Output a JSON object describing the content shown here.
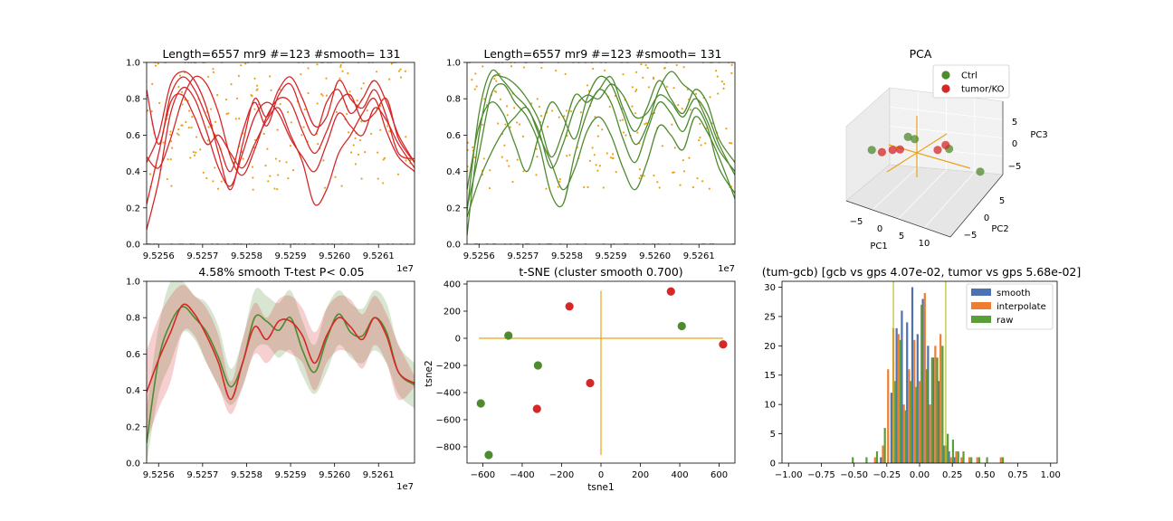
{
  "figure": {
    "panels": {
      "p1": {
        "title": "Length=6557 mr9 #=123 #smooth= 131",
        "offset": "1e7"
      },
      "p2": {
        "title": "Length=6557 mr9 #=123 #smooth= 131",
        "offset": "1e7"
      },
      "p3": {
        "title": "PCA",
        "xlabel": "PC1",
        "ylabel": "PC2",
        "zlabel": "PC3"
      },
      "p4": {
        "title": "4.58% smooth T-test P< 0.05",
        "offset": "1e7"
      },
      "p5": {
        "title": "t-SNE (cluster smooth 0.700)",
        "xlabel": "tsne1",
        "ylabel": "tsne2"
      },
      "p6": {
        "title": "(tum-gcb) [gcb vs gps 4.07e-02, tumor vs gps 5.68e-02]"
      }
    },
    "colors": {
      "red": "#d62728",
      "green": "#4e8a2e",
      "orange": "#e8a317",
      "blue": "#4c72b0",
      "hist_orange": "#ed7d31",
      "hist_green": "#5a9e3a"
    }
  },
  "chart_data": [
    {
      "type": "line",
      "panel": "p1",
      "title": "Length=6557 mr9 #=123 #smooth= 131",
      "xticks": [
        "9.5256",
        "9.5257",
        "9.5258",
        "9.5259",
        "9.5260",
        "9.5261"
      ],
      "xlim": [
        9.52552,
        9.52619
      ],
      "ylim": [
        0,
        1
      ],
      "yticks": [
        "0.0",
        "0.2",
        "0.4",
        "0.6",
        "0.8",
        "1.0"
      ],
      "x": [
        9.52552,
        9.52555,
        9.52558,
        9.52561,
        9.52564,
        9.52567,
        9.5257,
        9.52573,
        9.52576,
        9.52579,
        9.52582,
        9.52585,
        9.52588,
        9.52591,
        9.52594,
        9.52597,
        9.526,
        9.52603,
        9.52606,
        9.52609,
        9.52612,
        9.52615,
        9.52619
      ],
      "series": [
        {
          "color": "#d62728",
          "values": [
            0.85,
            0.55,
            0.82,
            0.92,
            0.85,
            0.7,
            0.55,
            0.4,
            0.62,
            0.78,
            0.65,
            0.82,
            0.88,
            0.72,
            0.6,
            0.78,
            0.85,
            0.72,
            0.8,
            0.9,
            0.78,
            0.6,
            0.45
          ]
        },
        {
          "color": "#d62728",
          "values": [
            0.45,
            0.6,
            0.88,
            0.95,
            0.9,
            0.75,
            0.5,
            0.3,
            0.55,
            0.8,
            0.7,
            0.85,
            0.92,
            0.8,
            0.65,
            0.7,
            0.9,
            0.8,
            0.75,
            0.85,
            0.7,
            0.5,
            0.47
          ]
        },
        {
          "color": "#d62728",
          "values": [
            0.08,
            0.35,
            0.72,
            0.86,
            0.8,
            0.62,
            0.42,
            0.32,
            0.5,
            0.7,
            0.78,
            0.72,
            0.58,
            0.48,
            0.4,
            0.55,
            0.72,
            0.65,
            0.6,
            0.75,
            0.68,
            0.55,
            0.42
          ]
        },
        {
          "color": "#d62728",
          "values": [
            0.22,
            0.5,
            0.78,
            0.82,
            0.7,
            0.55,
            0.6,
            0.5,
            0.42,
            0.55,
            0.68,
            0.75,
            0.6,
            0.45,
            0.22,
            0.3,
            0.5,
            0.6,
            0.72,
            0.8,
            0.62,
            0.48,
            0.4
          ]
        },
        {
          "color": "#d62728",
          "values": [
            0.48,
            0.42,
            0.58,
            0.8,
            0.92,
            0.88,
            0.72,
            0.48,
            0.38,
            0.52,
            0.7,
            0.8,
            0.78,
            0.62,
            0.5,
            0.62,
            0.78,
            0.82,
            0.68,
            0.72,
            0.8,
            0.58,
            0.45
          ]
        }
      ]
    },
    {
      "type": "line",
      "panel": "p2",
      "title": "Length=6557 mr9 #=123 #smooth= 131",
      "xticks": [
        "9.5256",
        "9.5257",
        "9.5258",
        "9.5259",
        "9.5260",
        "9.5261"
      ],
      "xlim": [
        9.52552,
        9.52619
      ],
      "ylim": [
        0,
        1
      ],
      "yticks": [
        "0.0",
        "0.2",
        "0.4",
        "0.6",
        "0.8",
        "1.0"
      ],
      "x": [
        9.52552,
        9.52555,
        9.52558,
        9.52561,
        9.52564,
        9.52567,
        9.5257,
        9.52573,
        9.52576,
        9.52579,
        9.52582,
        9.52585,
        9.52588,
        9.52591,
        9.52594,
        9.52597,
        9.526,
        9.52603,
        9.52606,
        9.52609,
        9.52612,
        9.52615,
        9.52619
      ],
      "series": [
        {
          "color": "#4e8a2e",
          "values": [
            0.05,
            0.6,
            0.9,
            0.92,
            0.88,
            0.8,
            0.68,
            0.48,
            0.62,
            0.82,
            0.78,
            0.85,
            0.92,
            0.75,
            0.62,
            0.75,
            0.9,
            0.8,
            0.72,
            0.85,
            0.78,
            0.58,
            0.45
          ]
        },
        {
          "color": "#4e8a2e",
          "values": [
            0.18,
            0.72,
            0.95,
            0.9,
            0.82,
            0.75,
            0.62,
            0.42,
            0.55,
            0.75,
            0.82,
            0.8,
            0.88,
            0.82,
            0.7,
            0.72,
            0.82,
            0.78,
            0.7,
            0.8,
            0.72,
            0.55,
            0.38
          ]
        },
        {
          "color": "#4e8a2e",
          "values": [
            0.2,
            0.5,
            0.82,
            0.88,
            0.78,
            0.7,
            0.55,
            0.28,
            0.22,
            0.5,
            0.72,
            0.85,
            0.78,
            0.58,
            0.45,
            0.62,
            0.78,
            0.72,
            0.62,
            0.75,
            0.65,
            0.42,
            0.28
          ]
        },
        {
          "color": "#4e8a2e",
          "values": [
            0.15,
            0.35,
            0.5,
            0.62,
            0.7,
            0.75,
            0.6,
            0.45,
            0.3,
            0.42,
            0.62,
            0.7,
            0.6,
            0.42,
            0.3,
            0.45,
            0.65,
            0.6,
            0.52,
            0.7,
            0.62,
            0.48,
            0.25
          ]
        },
        {
          "color": "#4e8a2e",
          "values": [
            0.3,
            0.65,
            0.78,
            0.72,
            0.55,
            0.4,
            0.6,
            0.78,
            0.7,
            0.58,
            0.8,
            0.92,
            0.88,
            0.72,
            0.55,
            0.65,
            0.85,
            0.95,
            0.88,
            0.82,
            0.68,
            0.52,
            0.4
          ]
        }
      ]
    },
    {
      "type": "scatter",
      "panel": "p3",
      "title": "PCA",
      "legend": [
        {
          "label": "Ctrl",
          "color": "#4e8a2e"
        },
        {
          "label": "tumor/KO",
          "color": "#d62728"
        }
      ],
      "xlabel": "PC1",
      "ylabel": "PC2",
      "zlabel": "PC3",
      "xticks": [
        "−5",
        "0",
        "5",
        "10"
      ],
      "yticks": [
        "−5",
        "0",
        "5"
      ],
      "zticks": [
        "−5",
        "0",
        "5"
      ],
      "points": [
        {
          "group": "Ctrl",
          "x": 3,
          "y": 6,
          "z": 6
        },
        {
          "group": "Ctrl",
          "x": 1,
          "y": 5,
          "z": 6
        },
        {
          "group": "Ctrl",
          "x": 8,
          "y": 2,
          "z": 3
        },
        {
          "group": "Ctrl",
          "x": -9,
          "y": 1,
          "z": 0
        },
        {
          "group": "Ctrl",
          "x": 10,
          "y": -6,
          "z": -5
        },
        {
          "group": "tumor/KO",
          "x": -4,
          "y": 2,
          "z": 1
        },
        {
          "group": "tumor/KO",
          "x": -3,
          "y": 1,
          "z": 1
        },
        {
          "group": "tumor/KO",
          "x": 5,
          "y": 1,
          "z": 2
        },
        {
          "group": "tumor/KO",
          "x": -8,
          "y": -1,
          "z": -1
        },
        {
          "group": "tumor/KO",
          "x": 9,
          "y": 5,
          "z": 5
        }
      ]
    },
    {
      "type": "area",
      "panel": "p4",
      "title": "4.58% smooth T-test P< 0.05",
      "xticks": [
        "9.5256",
        "9.5257",
        "9.5258",
        "9.5259",
        "9.5260",
        "9.5261"
      ],
      "xlim": [
        9.52552,
        9.52619
      ],
      "ylim": [
        0,
        1
      ],
      "yticks": [
        "0.0",
        "0.2",
        "0.4",
        "0.6",
        "0.8",
        "1.0"
      ],
      "x": [
        9.52552,
        9.52555,
        9.52558,
        9.52561,
        9.52564,
        9.52567,
        9.5257,
        9.52573,
        9.52576,
        9.52579,
        9.52582,
        9.52585,
        9.52588,
        9.52591,
        9.52594,
        9.52597,
        9.526,
        9.52603,
        9.52606,
        9.52609,
        9.52612,
        9.52615,
        9.52619
      ],
      "series": [
        {
          "name": "Ctrl",
          "color": "#4e8a2e",
          "mean": [
            0.11,
            0.57,
            0.77,
            0.86,
            0.8,
            0.72,
            0.58,
            0.42,
            0.55,
            0.8,
            0.78,
            0.73,
            0.8,
            0.62,
            0.5,
            0.68,
            0.82,
            0.72,
            0.7,
            0.8,
            0.72,
            0.5,
            0.43
          ],
          "lower": [
            0.0,
            0.38,
            0.55,
            0.72,
            0.68,
            0.55,
            0.42,
            0.32,
            0.42,
            0.62,
            0.65,
            0.58,
            0.62,
            0.48,
            0.38,
            0.5,
            0.65,
            0.58,
            0.55,
            0.62,
            0.55,
            0.38,
            0.3
          ],
          "upper": [
            0.3,
            0.75,
            1.0,
            1.0,
            0.92,
            0.88,
            0.75,
            0.52,
            0.68,
            0.95,
            0.92,
            0.88,
            0.95,
            0.78,
            0.65,
            0.85,
            0.95,
            0.88,
            0.85,
            0.95,
            0.88,
            0.65,
            0.55
          ]
        },
        {
          "name": "tumor/KO",
          "color": "#d62728",
          "mean": [
            0.39,
            0.57,
            0.72,
            0.87,
            0.82,
            0.7,
            0.55,
            0.35,
            0.55,
            0.75,
            0.68,
            0.78,
            0.78,
            0.7,
            0.55,
            0.7,
            0.8,
            0.75,
            0.68,
            0.8,
            0.7,
            0.5,
            0.44
          ],
          "lower": [
            0.12,
            0.3,
            0.45,
            0.72,
            0.7,
            0.55,
            0.42,
            0.27,
            0.42,
            0.6,
            0.55,
            0.62,
            0.6,
            0.55,
            0.4,
            0.55,
            0.62,
            0.6,
            0.52,
            0.65,
            0.55,
            0.35,
            0.42
          ],
          "upper": [
            0.62,
            0.8,
            0.92,
            0.98,
            0.92,
            0.85,
            0.7,
            0.45,
            0.68,
            0.88,
            0.8,
            0.9,
            0.92,
            0.85,
            0.72,
            0.85,
            0.92,
            0.9,
            0.82,
            0.92,
            0.82,
            0.65,
            0.48
          ]
        }
      ]
    },
    {
      "type": "scatter",
      "panel": "p5",
      "title": "t-SNE (cluster smooth 0.700)",
      "xlabel": "tsne1",
      "ylabel": "tsne2",
      "xlim": [
        -680,
        680
      ],
      "ylim": [
        -920,
        420
      ],
      "xticks": [
        -600,
        -400,
        -200,
        0,
        200,
        400,
        600
      ],
      "yticks": [
        400,
        200,
        0,
        -200,
        -400,
        -600,
        -800
      ],
      "points": [
        {
          "group": "Ctrl",
          "x": -470,
          "y": 20,
          "color": "#4e8a2e"
        },
        {
          "group": "Ctrl",
          "x": -320,
          "y": -200,
          "color": "#4e8a2e"
        },
        {
          "group": "Ctrl",
          "x": -610,
          "y": -480,
          "color": "#4e8a2e"
        },
        {
          "group": "Ctrl",
          "x": -570,
          "y": -860,
          "color": "#4e8a2e"
        },
        {
          "group": "Ctrl",
          "x": 410,
          "y": 90,
          "color": "#4e8a2e"
        },
        {
          "group": "tumor/KO",
          "x": -160,
          "y": 235,
          "color": "#d62728"
        },
        {
          "group": "tumor/KO",
          "x": -55,
          "y": -330,
          "color": "#d62728"
        },
        {
          "group": "tumor/KO",
          "x": -325,
          "y": -520,
          "color": "#d62728"
        },
        {
          "group": "tumor/KO",
          "x": 355,
          "y": 345,
          "color": "#d62728"
        },
        {
          "group": "tumor/KO",
          "x": 620,
          "y": -45,
          "color": "#d62728"
        }
      ]
    },
    {
      "type": "bar",
      "panel": "p6",
      "title": "(tum-gcb) [gcb vs gps 4.07e-02, tumor vs gps 5.68e-02]",
      "xlim": [
        -1.05,
        1.05
      ],
      "ylim": [
        0,
        31
      ],
      "xticks": [
        "−1.00",
        "−0.75",
        "−0.50",
        "−0.25",
        "0.00",
        "0.25",
        "0.50",
        "0.75",
        "1.00"
      ],
      "yticks": [
        0,
        5,
        10,
        15,
        20,
        25,
        30
      ],
      "vlines": [
        -0.2,
        0.2
      ],
      "bins": [
        -0.525,
        -0.42,
        -0.34,
        -0.28,
        -0.24,
        -0.2,
        -0.16,
        -0.12,
        -0.08,
        -0.04,
        0.0,
        0.04,
        0.08,
        0.12,
        0.16,
        0.2,
        0.24,
        0.28,
        0.32,
        0.38,
        0.44,
        0.5,
        0.62
      ],
      "series": [
        {
          "name": "smooth",
          "color": "#4c72b0",
          "values": [
            0,
            0,
            0,
            1,
            0,
            12,
            23,
            26,
            24,
            30,
            22,
            28,
            20,
            18,
            14,
            3,
            2,
            1,
            0,
            0,
            0,
            0,
            0
          ]
        },
        {
          "name": "interpolate",
          "color": "#ed7d31",
          "values": [
            0,
            0,
            1,
            3,
            16,
            23,
            22,
            10,
            16,
            21,
            14,
            29,
            10,
            20,
            22,
            3,
            1,
            2,
            1,
            1,
            1,
            0,
            1
          ]
        },
        {
          "name": "raw",
          "color": "#5a9e3a",
          "values": [
            1,
            1,
            2,
            6,
            0,
            14,
            21,
            9,
            14,
            13,
            27,
            16,
            18,
            18,
            20,
            5,
            4,
            2,
            2,
            1,
            1,
            1,
            1
          ]
        }
      ]
    }
  ]
}
